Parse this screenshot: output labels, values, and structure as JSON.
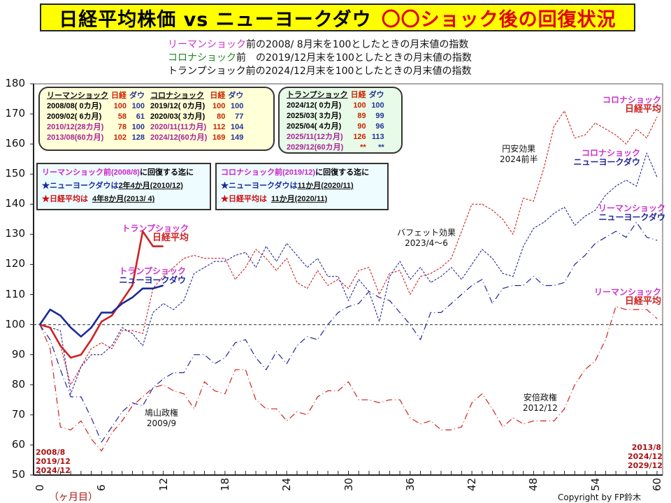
{
  "title": {
    "main": "日経平均株価 vs ニューヨークダウ",
    "accent": "〇〇ショック後の回復状況"
  },
  "subtitles": [
    {
      "lead": "リーマンショック",
      "rest": "前の2008/ 8月末を100としたときの月末値の指数"
    },
    {
      "lead": "コロナショック",
      "rest": "前　の2019/12月末を100としたときの月末値の指数"
    },
    {
      "lead": "",
      "rest": "トランプショック前の2024/12月末を100としたときの月末値の指数"
    }
  ],
  "summary_table_1": {
    "headers": [
      "リーマンショック",
      "日経",
      "ダウ",
      "コロナショック",
      "日経",
      "ダウ"
    ],
    "rows": [
      [
        "2008/08( 0カ月)",
        "100",
        "100",
        "2019/12( 0カ月)",
        "100",
        "100"
      ],
      [
        "2009/02( 6カ月)",
        "58",
        "61",
        "2020/03( 3カ月)",
        "80",
        "77"
      ],
      [
        "2010/12(28カ月)",
        "78",
        "100",
        "2020/11(11カ月)",
        "112",
        "104"
      ],
      [
        "2013/08(60カ月)",
        "102",
        "128",
        "2024/12(60カ月)",
        "169",
        "149"
      ]
    ]
  },
  "summary_table_2": {
    "headers": [
      "トランプショック",
      "日経",
      "ダウ"
    ],
    "rows": [
      [
        "2024/12( 0カ月)",
        "100",
        "100"
      ],
      [
        "2025/03( 3カ月)",
        "89",
        "99"
      ],
      [
        "2025/04( 4カ月)",
        "90",
        "96"
      ],
      [
        "2025/11(12カ月)",
        "126",
        "113"
      ],
      [
        "2029/12(60カ月)",
        "**",
        "**"
      ]
    ]
  },
  "recovery_lehman": {
    "heading_a": "リーマンショック",
    "heading_b": "前(2008/8)",
    "heading_c": "に回復する迄に",
    "dow_label": "★ニューヨークダウは",
    "dow_value": "2年4か月(2010/12)",
    "nikkei_label": "★日経平均は",
    "nikkei_value": "4年8か月(2013/ 4)"
  },
  "recovery_corona": {
    "heading_a": "コロナショック",
    "heading_b": "前(2019/12)",
    "heading_c": "に回復する迄に",
    "dow_label": "★ニューヨークダウは",
    "dow_value": "11か月(2020/11)",
    "nikkei_label": "★日経平均は",
    "nikkei_value": "11か月(2020/11)"
  },
  "series_labels": {
    "trump_nikkei": [
      "トランプショック",
      "日経平均"
    ],
    "trump_dow": [
      "トランプショック",
      "ニューヨークダウ"
    ],
    "corona_nikkei": [
      "コロナショック",
      "日経平均"
    ],
    "corona_dow": [
      "コロナショック",
      "ニューヨークダウ"
    ],
    "lehman_dow": [
      "リーマンショック",
      "ニューヨークダウ"
    ],
    "lehman_nikkei": [
      "リーマンショック",
      "日経平均"
    ]
  },
  "annotations": {
    "yen": [
      "円安効果",
      "2024前半"
    ],
    "buffett": [
      "バフェット効果",
      "2023/4～6"
    ],
    "hatoyama": [
      "鳩山政権",
      "2009/9"
    ],
    "abe": [
      "安倍政権",
      "2012/12"
    ]
  },
  "corner_start": [
    "2008/8",
    "2019/12",
    "2024/12"
  ],
  "corner_end": [
    "2013/8",
    "2024/12",
    "2029/12"
  ],
  "x_unit": "（ヶ月目）",
  "copyright": "Copyright by FP鈴木",
  "colors": {
    "nikkei": "#cc2222",
    "dow": "#22259a",
    "title_bg": "#ffff00",
    "accent": "#e00000",
    "lehman_text": "#cc33cc",
    "corona_text": "#228822"
  },
  "chart_data": {
    "type": "line",
    "xlim": [
      0,
      60
    ],
    "ylim": [
      50,
      180
    ],
    "x_ticks": [
      0,
      6,
      12,
      18,
      24,
      30,
      36,
      42,
      48,
      54,
      60
    ],
    "y_ticks": [
      50,
      60,
      70,
      80,
      90,
      100,
      110,
      120,
      130,
      140,
      150,
      160,
      170,
      180
    ],
    "reference_line": 100,
    "grid": false,
    "series": [
      {
        "name": "リーマンショック 日経平均",
        "key": "lehman_nikkei",
        "color": "#cc2222",
        "style": "dash-dot",
        "values": [
          100,
          92,
          66,
          65,
          68,
          62,
          58,
          64,
          68,
          73,
          76,
          79,
          80,
          78,
          77,
          72,
          81,
          78,
          77,
          85,
          85,
          75,
          72,
          72,
          68,
          71,
          70,
          76,
          78,
          78,
          81,
          75,
          75,
          74,
          75,
          75,
          69,
          67,
          68,
          65,
          65,
          66,
          74,
          77,
          72,
          66,
          69,
          67,
          68,
          68,
          68,
          72,
          80,
          85,
          88,
          95,
          106,
          105,
          105,
          105,
          102
        ]
      },
      {
        "name": "リーマンショック ニューヨークダウ",
        "key": "lehman_dow",
        "color": "#22259a",
        "style": "dash-dot",
        "values": [
          100,
          95,
          85,
          76,
          76,
          69,
          61,
          66,
          71,
          74,
          73,
          79,
          82,
          84,
          84,
          90,
          90,
          87,
          89,
          94,
          95,
          89,
          85,
          91,
          87,
          93,
          96,
          95,
          100,
          104,
          106,
          107,
          111,
          109,
          108,
          104,
          100,
          95,
          104,
          104,
          107,
          110,
          113,
          115,
          107,
          112,
          113,
          113,
          116,
          113,
          113,
          114,
          120,
          123,
          127,
          129,
          131,
          129,
          134,
          129,
          128
        ]
      },
      {
        "name": "コロナショック 日経平均",
        "key": "corona_nikkei",
        "color": "#cc2222",
        "style": "dotted",
        "values": [
          100,
          99,
          93,
          80,
          86,
          92,
          94,
          92,
          98,
          98,
          97,
          112,
          116,
          119,
          122,
          123,
          122,
          122,
          122,
          115,
          119,
          125,
          122,
          118,
          122,
          114,
          112,
          118,
          113,
          115,
          112,
          118,
          119,
          110,
          117,
          118,
          110,
          116,
          117,
          119,
          122,
          131,
          140,
          140,
          138,
          135,
          130,
          142,
          141,
          152,
          166,
          171,
          162,
          163,
          167,
          165,
          163,
          160,
          165,
          162,
          169
        ]
      },
      {
        "name": "コロナショック ニューヨークダウ",
        "key": "corona_dow",
        "color": "#22259a",
        "style": "dotted",
        "values": [
          100,
          99,
          98,
          77,
          86,
          90,
          90,
          93,
          99,
          97,
          93,
          104,
          107,
          105,
          108,
          117,
          119,
          121,
          121,
          123,
          124,
          119,
          126,
          121,
          127,
          123,
          119,
          122,
          116,
          116,
          108,
          115,
          111,
          101,
          116,
          121,
          115,
          119,
          114,
          116,
          119,
          115,
          120,
          125,
          122,
          117,
          116,
          126,
          132,
          134,
          137,
          139,
          133,
          136,
          138,
          143,
          146,
          148,
          146,
          157,
          149
        ]
      },
      {
        "name": "トランプショック 日経平均",
        "key": "trump_nikkei",
        "color": "#cc2222",
        "style": "solid",
        "values": [
          100,
          99,
          93,
          89,
          90,
          95,
          101,
          103,
          108,
          113,
          131,
          126,
          126
        ]
      },
      {
        "name": "トランプショック ニューヨークダウ",
        "key": "trump_dow",
        "color": "#1a2a9a",
        "style": "solid",
        "values": [
          100,
          105,
          103,
          99,
          96,
          99,
          104,
          104,
          107,
          109,
          112,
          112,
          113
        ]
      }
    ]
  }
}
